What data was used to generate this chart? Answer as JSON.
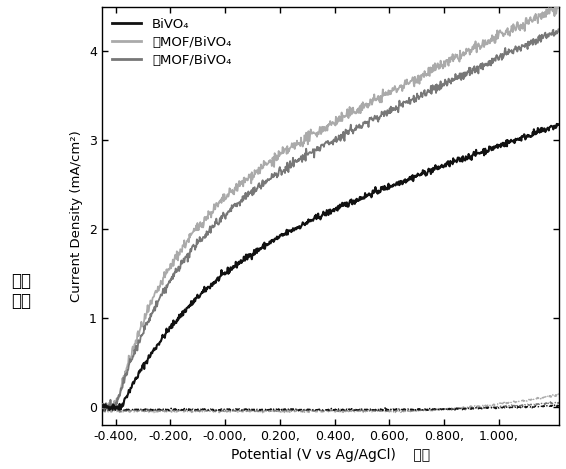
{
  "title": "",
  "xlabel": "Potential (V vs Ag/AgCl)    电势",
  "ylabel": "Current Density (mA/cm²)",
  "ylabel_chinese": "电流\n密度",
  "xlim": [
    -0.45,
    1.22
  ],
  "ylim": [
    -0.2,
    4.5
  ],
  "xticks": [
    -0.4,
    -0.2,
    0.0,
    0.2,
    0.4,
    0.6,
    0.8,
    1.0
  ],
  "yticks": [
    0,
    1,
    2,
    3,
    4
  ],
  "xtick_labels": [
    "-0.400,",
    "-0.200,",
    "-0.000,",
    "0.200,",
    "0.400,",
    "0.600,",
    "0.800,",
    "1.000,"
  ],
  "ytick_labels": [
    "0",
    "1",
    "2",
    "3",
    "4"
  ],
  "legend_labels": [
    "BiVO₄",
    "薿MOF/BiVO₄",
    "厚MOF/BiVO₄"
  ],
  "bivo4_color": "#111111",
  "thin_mof_color": "#aaaaaa",
  "thick_mof_color": "#777777",
  "background_color": "#ffffff",
  "noise_seed": 42
}
